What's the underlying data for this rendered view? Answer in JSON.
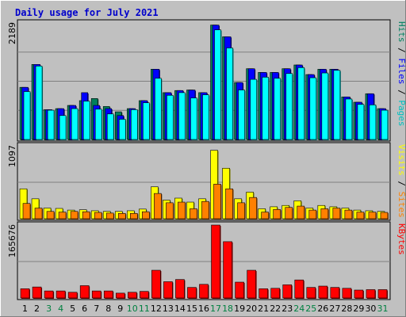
{
  "chart_data": {
    "type": "bar",
    "title": "Daily usage for July 2021",
    "categories": [
      "1",
      "2",
      "3",
      "4",
      "5",
      "6",
      "7",
      "8",
      "9",
      "10",
      "11",
      "12",
      "13",
      "14",
      "15",
      "16",
      "17",
      "18",
      "19",
      "20",
      "21",
      "22",
      "23",
      "24",
      "25",
      "26",
      "27",
      "28",
      "29",
      "30",
      "31"
    ],
    "weekend_days": [
      "3",
      "4",
      "10",
      "11",
      "17",
      "18",
      "24",
      "25",
      "31"
    ],
    "panels": [
      {
        "id": "hits-files-pages",
        "max_label": "2189",
        "max": 2189,
        "side_labels": [
          "Pages",
          "Files",
          "Hits"
        ],
        "series": [
          {
            "name": "Hits",
            "color": "#00805c",
            "values": [
              980,
              1410,
              560,
              580,
              640,
              730,
              770,
              620,
              520,
              580,
              730,
              1320,
              880,
              920,
              930,
              880,
              2150,
              1930,
              1070,
              1330,
              1260,
              1260,
              1330,
              1400,
              1220,
              1320,
              1320,
              800,
              700,
              860,
              580
            ]
          },
          {
            "name": "Files",
            "color": "#0000ff",
            "values": [
              980,
              1410,
              560,
              580,
              640,
              880,
              640,
              580,
              450,
              580,
              730,
              1320,
              880,
              920,
              930,
              880,
              2150,
              1930,
              1070,
              1330,
              1260,
              1260,
              1330,
              1400,
              1220,
              1320,
              1320,
              800,
              700,
              860,
              580
            ]
          },
          {
            "name": "Pages",
            "color": "#00ffff",
            "values": [
              900,
              1380,
              550,
              450,
              580,
              720,
              570,
              480,
              380,
              560,
              690,
              1150,
              830,
              880,
              780,
              840,
              2060,
              1720,
              930,
              1130,
              1170,
              1150,
              1240,
              1350,
              1160,
              1250,
              1300,
              760,
              660,
              650,
              550
            ]
          }
        ]
      },
      {
        "id": "visits-sites",
        "max_label": "1097",
        "max": 1097,
        "side_labels": [
          "Sites",
          "Visits"
        ],
        "series": [
          {
            "name": "Visits",
            "color": "#ffff00",
            "values": [
              450,
              300,
              160,
              155,
              130,
              135,
              120,
              110,
              110,
              120,
              145,
              480,
              280,
              310,
              250,
              300,
              1030,
              760,
              300,
              400,
              150,
              180,
              200,
              270,
              160,
              200,
              180,
              160,
              130,
              120,
              110
            ]
          },
          {
            "name": "Sites",
            "color": "#ff8000",
            "values": [
              230,
              160,
              110,
              100,
              110,
              105,
              95,
              85,
              80,
              80,
              105,
              380,
              240,
              250,
              150,
              260,
              520,
              450,
              240,
              320,
              100,
              140,
              170,
              190,
              130,
              150,
              160,
              130,
              100,
              100,
              95
            ]
          }
        ]
      },
      {
        "id": "kbytes",
        "max_label": "165676",
        "max": 165676,
        "side_labels": [
          "KBytes"
        ],
        "series": [
          {
            "name": "KBytes",
            "color": "#ff0000",
            "values": [
              21000,
              25000,
              16000,
              16000,
              13000,
              28000,
              16000,
              16000,
              11000,
              13000,
              15000,
              63000,
              37000,
              42000,
              24000,
              31000,
              165676,
              128000,
              36000,
              63000,
              21000,
              22000,
              30000,
              41000,
              24000,
              27000,
              24000,
              22000,
              18000,
              19000,
              19000
            ]
          }
        ]
      }
    ]
  }
}
